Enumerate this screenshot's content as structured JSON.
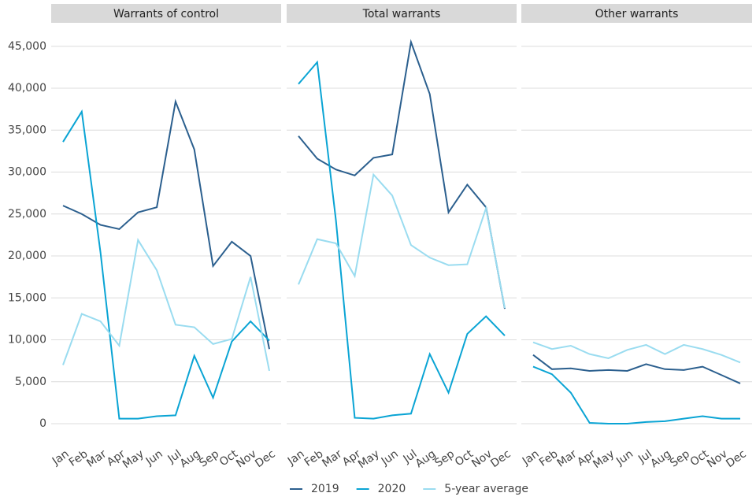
{
  "chart_data": {
    "type": "line",
    "categories": [
      "Jan",
      "Feb",
      "Mar",
      "Apr",
      "May",
      "Jun",
      "Jul",
      "Aug",
      "Sep",
      "Oct",
      "Nov",
      "Dec"
    ],
    "ylim": [
      -2250,
      47700
    ],
    "yticks": [
      0,
      {
        "value": 5000,
        "label": "5,000"
      },
      {
        "value": 10000,
        "label": "10,000"
      },
      {
        "value": 15000,
        "label": "15,000"
      },
      {
        "value": 20000,
        "label": "20,000"
      },
      {
        "value": 25000,
        "label": "25,000"
      },
      {
        "value": 30000,
        "label": "30,000"
      },
      {
        "value": 35000,
        "label": "35,000"
      },
      {
        "value": 40000,
        "label": "40,000"
      },
      {
        "value": 45000,
        "label": "45,000"
      }
    ],
    "grid": true,
    "legend": "bottom",
    "series": [
      {
        "name": "2019",
        "color": "#2b5f8e"
      },
      {
        "name": "2020",
        "color": "#0aa4d4"
      },
      {
        "name": "5-year average",
        "color": "#9adcf0"
      }
    ],
    "facets": [
      {
        "title": "Warrants of control",
        "values": [
          [
            26000,
            25000,
            23700,
            23200,
            25200,
            25800,
            38400,
            32700,
            18800,
            21700,
            20000,
            8900
          ],
          [
            33600,
            37200,
            20400,
            600,
            600,
            900,
            1000,
            8100,
            3100,
            9800,
            12200,
            9900
          ],
          [
            7000,
            13100,
            12200,
            9300,
            21900,
            18300,
            11800,
            11500,
            9500,
            10100,
            17500,
            6300
          ]
        ]
      },
      {
        "title": "Total warrants",
        "values": [
          [
            34300,
            31600,
            30300,
            29600,
            31700,
            32100,
            45500,
            39300,
            25200,
            28500,
            25800,
            13700
          ],
          [
            40500,
            43100,
            24200,
            700,
            600,
            1000,
            1200,
            8300,
            3700,
            10700,
            12800,
            10500
          ],
          [
            16600,
            22000,
            21500,
            17600,
            29700,
            27200,
            21300,
            19800,
            18900,
            19000,
            25700,
            13800
          ]
        ]
      },
      {
        "title": "Other warrants",
        "values": [
          [
            8200,
            6500,
            6600,
            6300,
            6400,
            6300,
            7100,
            6500,
            6400,
            6800,
            5800,
            4800
          ],
          [
            6800,
            5900,
            3700,
            100,
            0,
            0,
            200,
            300,
            600,
            900,
            600,
            600
          ],
          [
            9700,
            8900,
            9300,
            8300,
            7800,
            8800,
            9400,
            8300,
            9400,
            8900,
            8200,
            7300
          ]
        ]
      }
    ]
  }
}
